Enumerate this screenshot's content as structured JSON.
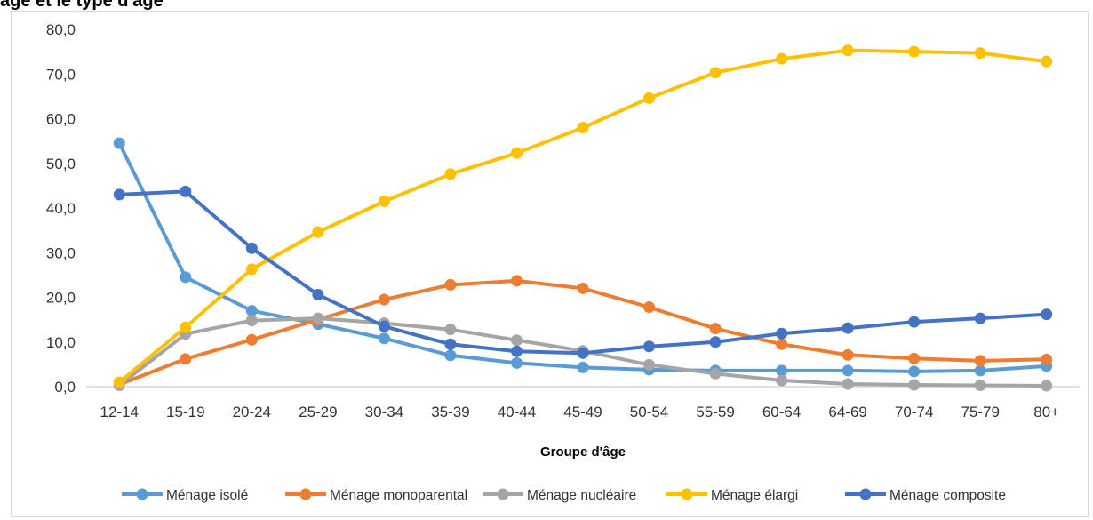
{
  "page": {
    "title": "age et le type d'âge"
  },
  "chart_data": {
    "type": "line",
    "title": "",
    "xlabel": "Groupe d'âge",
    "ylabel": "",
    "ylim": [
      0,
      80
    ],
    "yticks": [
      "0,0",
      "10,0",
      "20,0",
      "30,0",
      "40,0",
      "50,0",
      "60,0",
      "70,0",
      "80,0"
    ],
    "grid": "none",
    "legend_position": "bottom",
    "categories": [
      "12-14",
      "15-19",
      "20-24",
      "25-29",
      "30-34",
      "35-39",
      "40-44",
      "45-49",
      "50-54",
      "55-59",
      "60-64",
      "64-69",
      "70-74",
      "75-79",
      "80+"
    ],
    "series": [
      {
        "name": "Ménage isolé",
        "color": "#5B9BD5",
        "values": [
          54.5,
          24.5,
          17.0,
          14.0,
          10.8,
          7.0,
          5.3,
          4.3,
          3.8,
          3.6,
          3.6,
          3.6,
          3.4,
          3.6,
          4.6
        ]
      },
      {
        "name": "Ménage monoparental",
        "color": "#ED7D31",
        "values": [
          0.5,
          6.2,
          10.5,
          15.0,
          19.5,
          22.8,
          23.7,
          22.0,
          17.8,
          13.0,
          9.5,
          7.1,
          6.3,
          5.8,
          6.1
        ]
      },
      {
        "name": "Ménage nucléaire",
        "color": "#A5A5A5",
        "values": [
          0.3,
          11.8,
          14.8,
          15.3,
          14.2,
          12.8,
          10.4,
          8.0,
          4.9,
          2.9,
          1.4,
          0.6,
          0.4,
          0.3,
          0.2
        ]
      },
      {
        "name": "Ménage élargi",
        "color": "#FFC000",
        "values": [
          1.0,
          13.3,
          26.3,
          34.6,
          41.5,
          47.6,
          52.3,
          58.0,
          64.6,
          70.3,
          73.4,
          75.3,
          75.0,
          74.7,
          72.8
        ]
      },
      {
        "name": "Ménage composite",
        "color": "#4472C4",
        "values": [
          43.0,
          43.7,
          31.0,
          20.6,
          13.5,
          9.5,
          7.9,
          7.5,
          9.0,
          10.0,
          11.9,
          13.1,
          14.5,
          15.3,
          16.2
        ]
      }
    ]
  }
}
